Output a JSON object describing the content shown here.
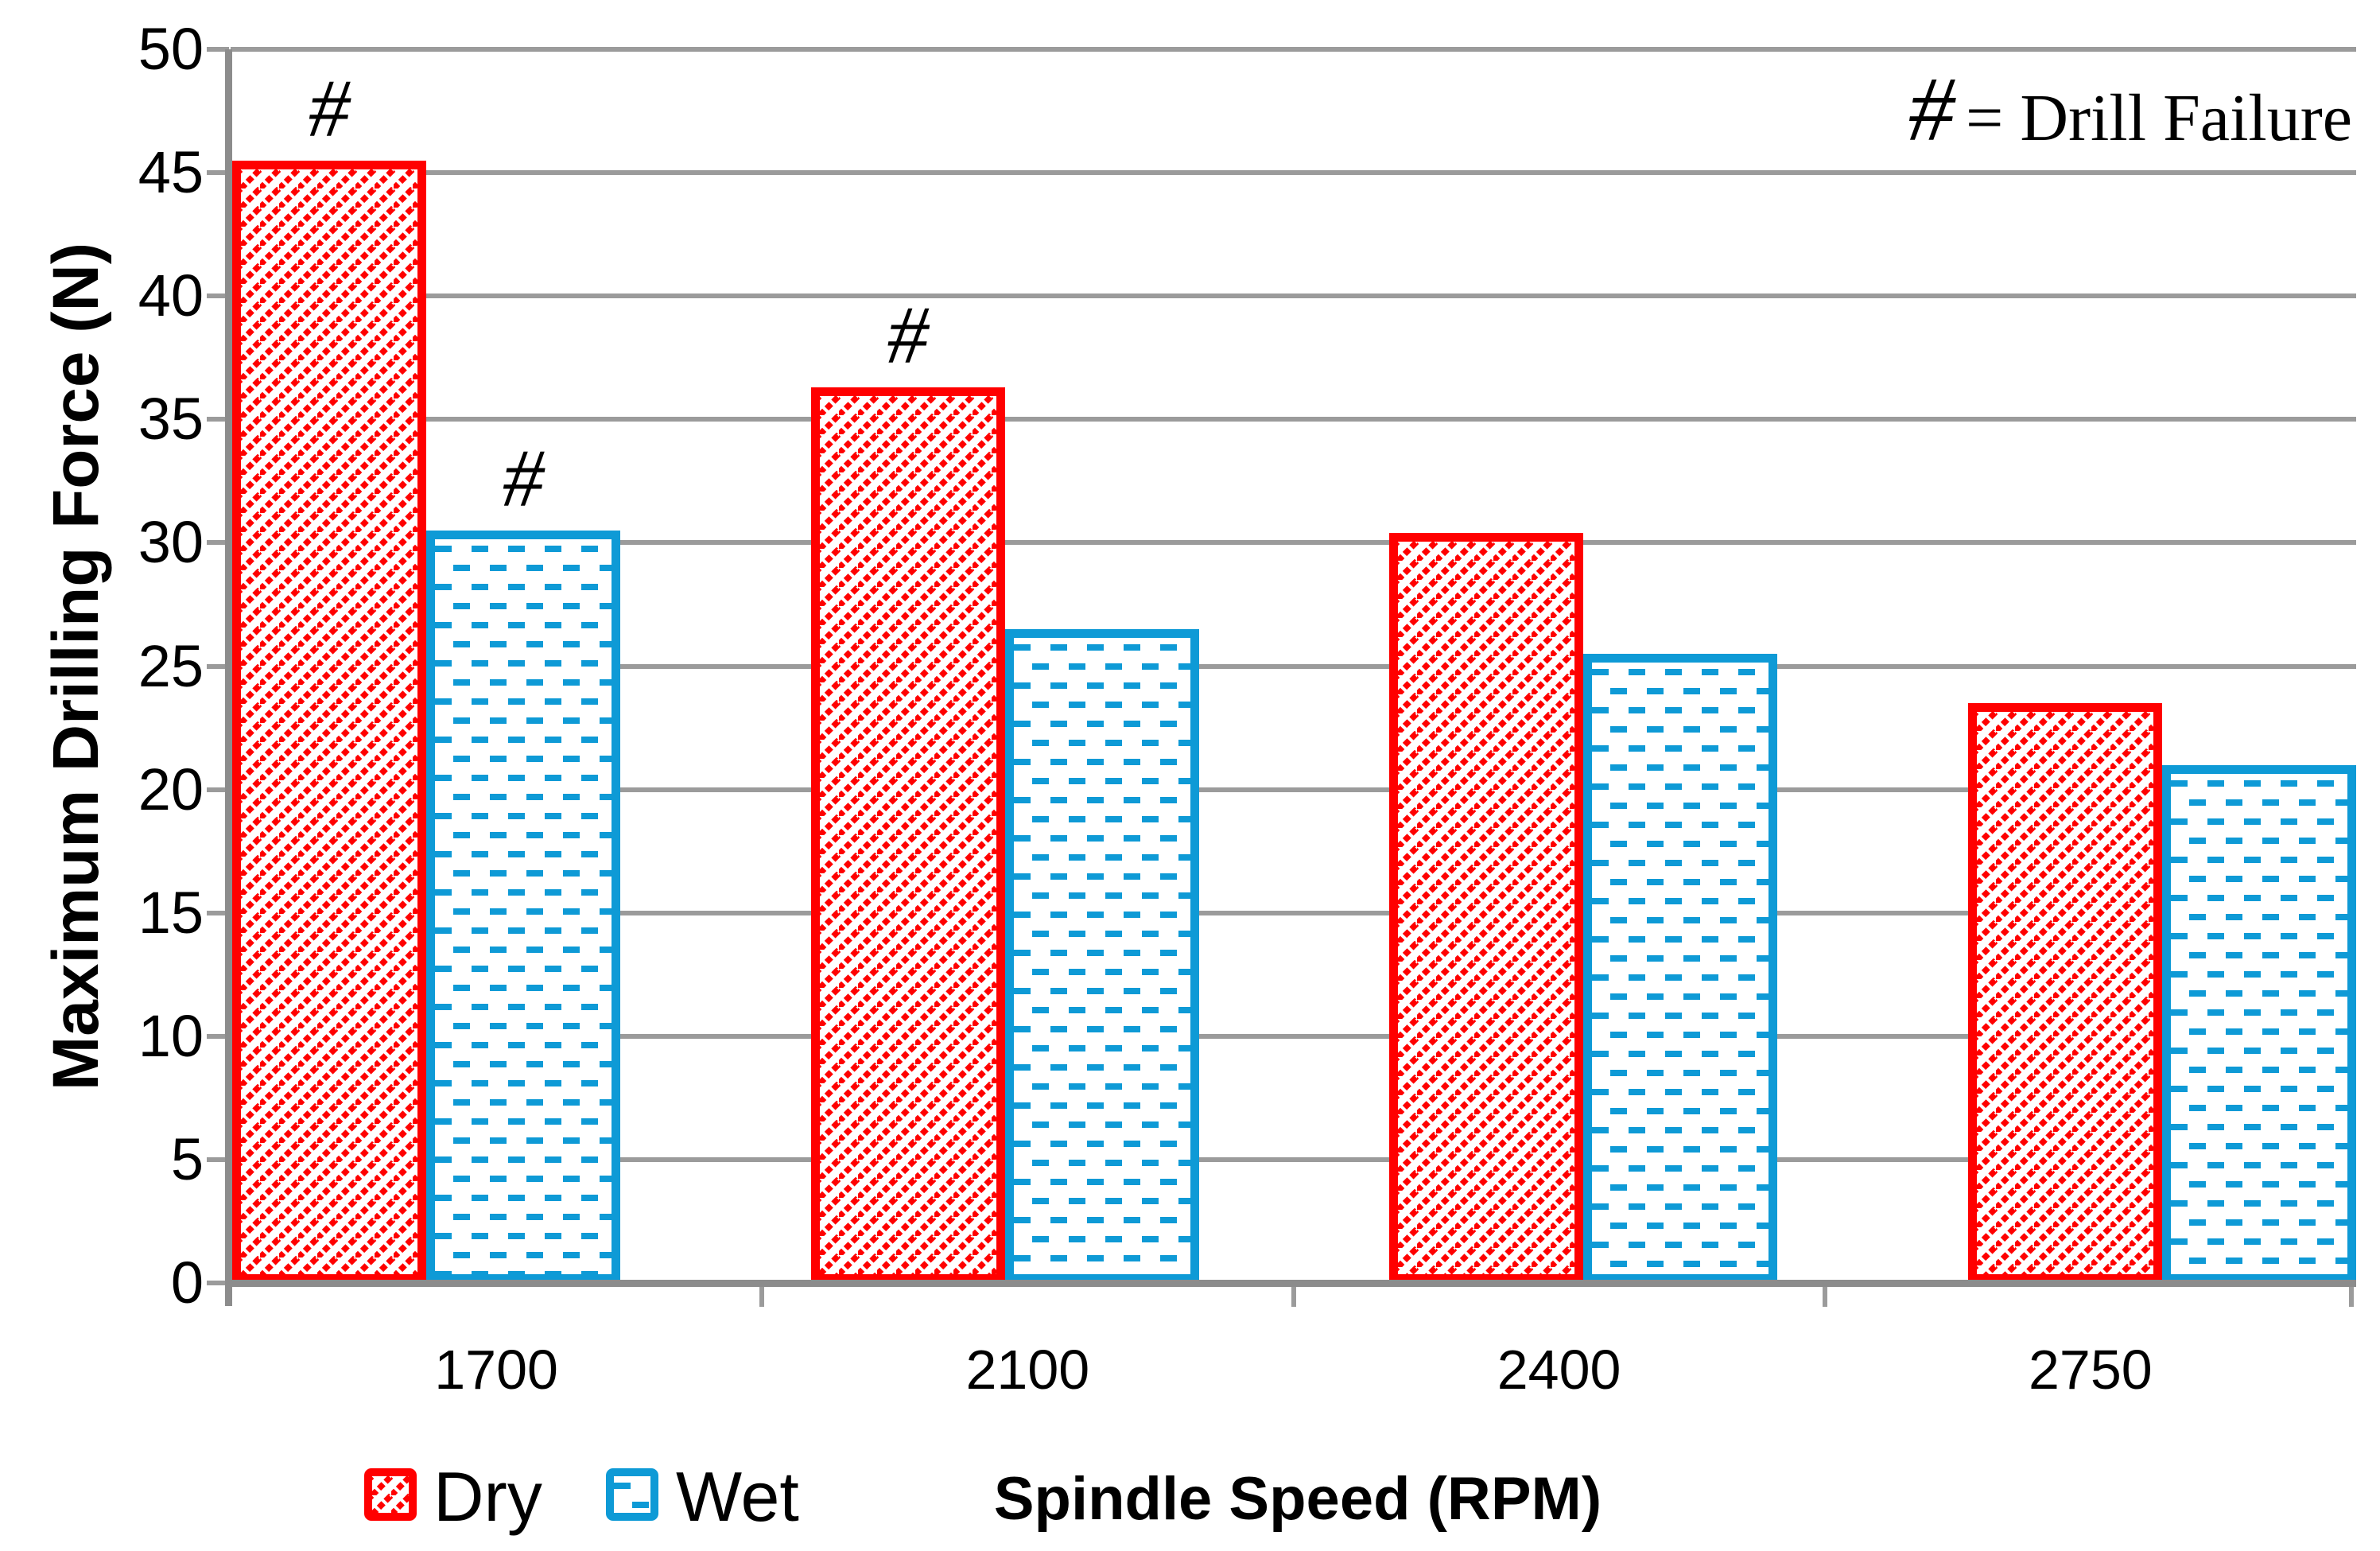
{
  "chart_data": {
    "type": "bar",
    "title": "",
    "categories": [
      "1700",
      "2100",
      "2400",
      "2750"
    ],
    "series": [
      {
        "name": "Dry",
        "color": "#FF0000",
        "pattern": "diagonal-hatch",
        "values": [
          45.5,
          36.3,
          30.4,
          23.5
        ],
        "drill_failure": [
          true,
          true,
          false,
          false
        ]
      },
      {
        "name": "Wet",
        "color": "#0E9AD6",
        "pattern": "horizontal-dash",
        "values": [
          30.5,
          26.5,
          25.5,
          21.0
        ],
        "drill_failure": [
          true,
          false,
          false,
          false
        ]
      }
    ],
    "xlabel": "Spindle Speed (RPM)",
    "ylabel": "Maximum Drilling Force (N)",
    "ylim": [
      0,
      50
    ],
    "y_ticks": [
      0,
      5,
      10,
      15,
      20,
      25,
      30,
      35,
      40,
      45,
      50
    ],
    "grid": true,
    "legend_position": "bottom-left",
    "failure_symbol": "#",
    "annotation": {
      "symbol": "#",
      "text": "= Drill Failure"
    }
  },
  "colors": {
    "dry": "#FF0000",
    "wet": "#0E9AD6",
    "gridline": "#9B9B9B",
    "axis": "#8C8C8C",
    "text": "#000000",
    "background": "#FFFFFF"
  },
  "legend": {
    "dry_label": "Dry",
    "wet_label": "Wet"
  }
}
